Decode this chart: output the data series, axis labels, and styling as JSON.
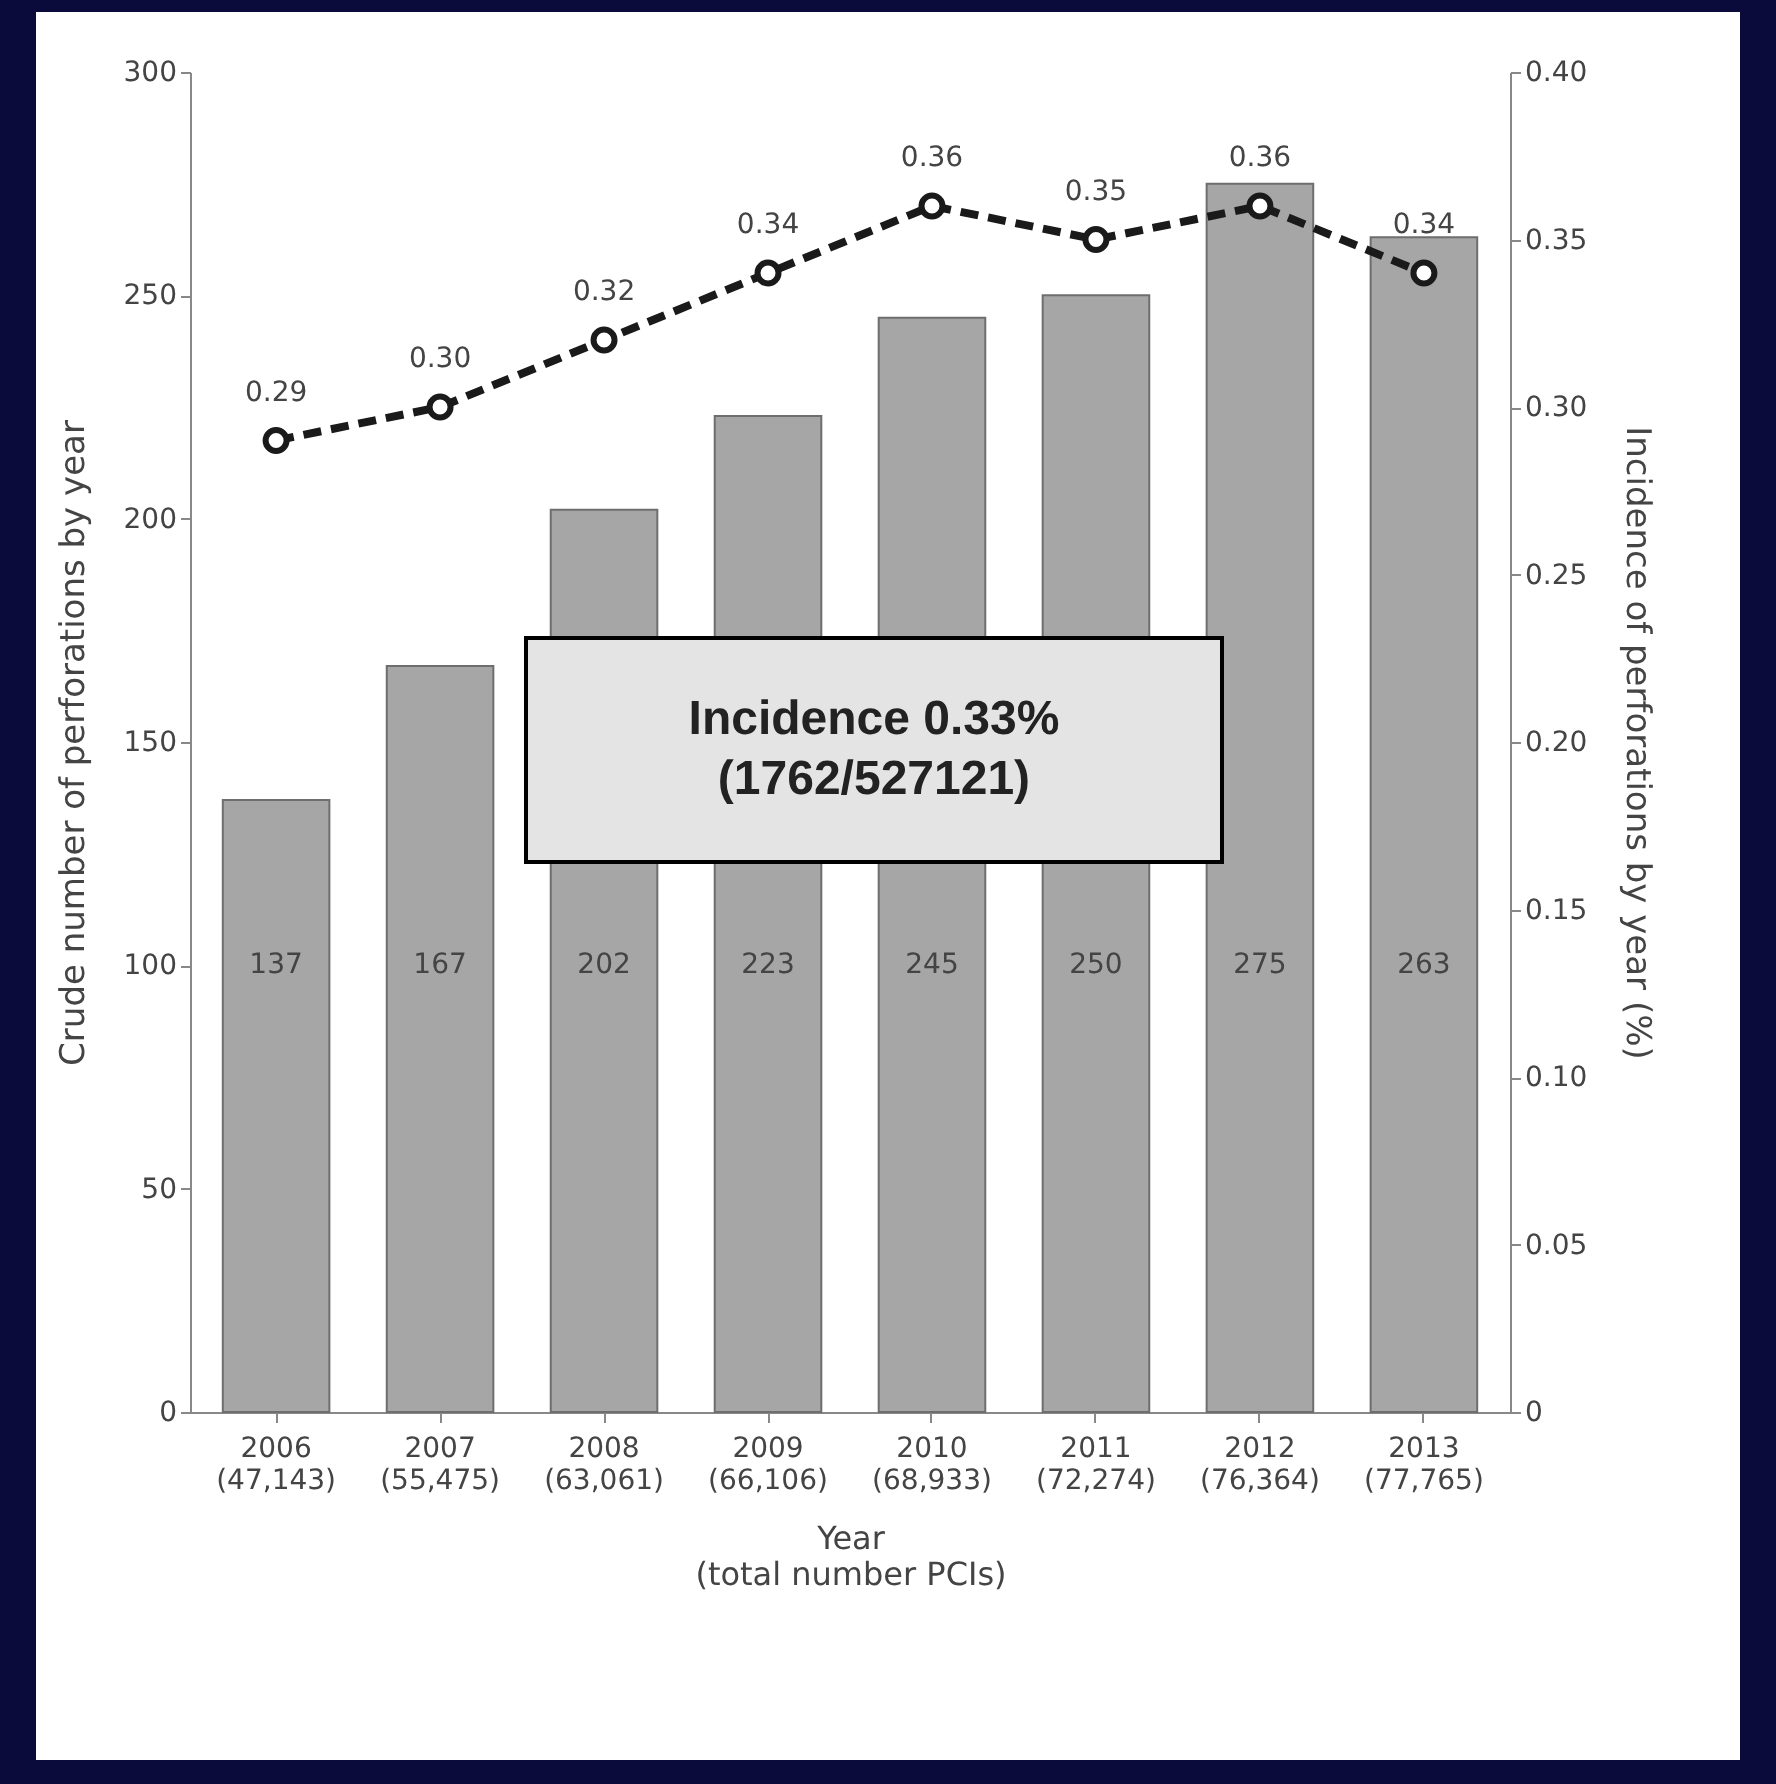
{
  "chart_data": {
    "type": "bar",
    "xlabel": "Year\n(total number PCIs)",
    "ylabel": "Crude number of perforations by year",
    "y2label": "Incidence of perforations by year (%)",
    "categories": [
      "2006\n(47,143)",
      "2007\n(55,475)",
      "2008\n(63,061)",
      "2009\n(66,106)",
      "2010\n(68,933)",
      "2011\n(72,274)",
      "2012\n(76,364)",
      "2013\n(77,765)"
    ],
    "series": [
      {
        "color": "#a6a6a6",
        "values": [
          137,
          167,
          202,
          223,
          245,
          250,
          275,
          263
        ],
        "value_labels": [
          "137",
          "167",
          "202",
          "223",
          "245",
          "250",
          "275",
          "263"
        ]
      },
      {
        "type": "line",
        "axis": "y2",
        "color": "#1a1a1a",
        "marker": "circle",
        "line_style": "dashed",
        "values": [
          0.29,
          0.3,
          0.32,
          0.34,
          0.36,
          0.35,
          0.36,
          0.34
        ],
        "value_labels": [
          "0.29",
          "0.30",
          "0.32",
          "0.34",
          "0.36",
          "0.35",
          "0.36",
          "0.34"
        ]
      }
    ],
    "ylim": [
      0,
      300
    ],
    "yticks": [
      0,
      50,
      100,
      150,
      200,
      250,
      300
    ],
    "y2lim": [
      0,
      0.4
    ],
    "y2ticks": [
      {
        "value": 0,
        "label": "0"
      },
      {
        "value": 0.05,
        "label": "0.05"
      },
      {
        "value": 0.1,
        "label": "0.10"
      },
      {
        "value": 0.15,
        "label": "0.15"
      },
      {
        "value": 0.2,
        "label": "0.20"
      },
      {
        "value": 0.25,
        "label": "0.25"
      },
      {
        "value": 0.3,
        "label": "0.30"
      },
      {
        "value": 0.35,
        "label": "0.35"
      },
      {
        "value": 0.4,
        "label": "0.40"
      }
    ],
    "annotations": [
      "Incidence 0.33%\n(1762/527121)"
    ],
    "grid": false
  }
}
